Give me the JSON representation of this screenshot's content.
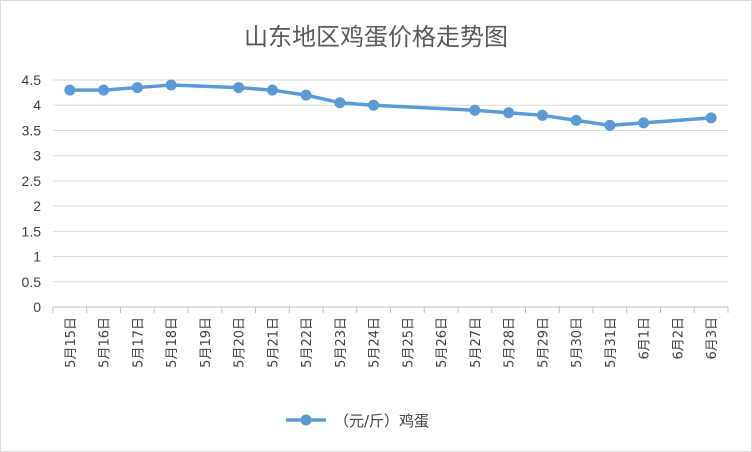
{
  "chart_data": {
    "type": "line",
    "title": "山东地区鸡蛋价格走势图",
    "xlabel": "",
    "ylabel": "",
    "ylim": [
      0,
      4.5
    ],
    "yticks": [
      "0",
      "0.5",
      "1",
      "1.5",
      "2",
      "2.5",
      "3",
      "3.5",
      "4",
      "4.5"
    ],
    "grid": true,
    "legend": "bottom",
    "color": "#5b9bd5",
    "categories": [
      "5月15日",
      "5月16日",
      "5月17日",
      "5月18日",
      "5月19日",
      "5月20日",
      "5月21日",
      "5月22日",
      "5月23日",
      "5月24日",
      "5月25日",
      "5月26日",
      "5月27日",
      "5月28日",
      "5月29日",
      "5月30日",
      "5月31日",
      "6月1日",
      "6月2日",
      "6月3日"
    ],
    "series": [
      {
        "name": "（元/斤）鸡蛋",
        "values": [
          4.3,
          4.3,
          4.35,
          4.4,
          null,
          4.35,
          4.3,
          4.2,
          4.05,
          4.0,
          null,
          null,
          3.9,
          3.85,
          3.8,
          3.7,
          3.6,
          3.65,
          null,
          3.75
        ]
      }
    ]
  }
}
